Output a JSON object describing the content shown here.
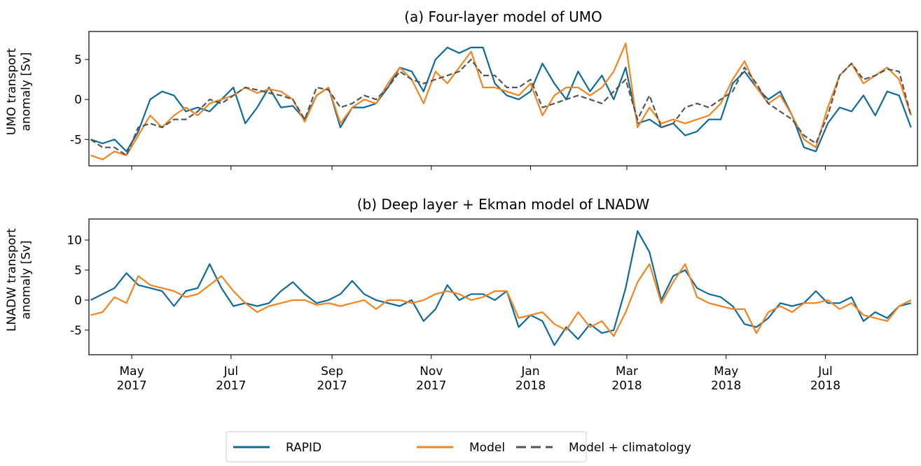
{
  "chart_data": [
    {
      "type": "line",
      "title": "(a) Four-layer model of UMO",
      "y_label": "UMO transport\nanomaly [Sv]",
      "xlim": [
        2017.257,
        2018.651
      ],
      "ylim": [
        -8.3,
        8.5
      ],
      "xticks": [
        2017.329,
        2017.496,
        2017.666,
        2017.833,
        2018.0,
        2018.162,
        2018.329,
        2018.496
      ],
      "yticks": [
        -5,
        0,
        5
      ],
      "x": [
        2017.26,
        2017.28,
        2017.3,
        2017.32,
        2017.34,
        2017.36,
        2017.38,
        2017.4,
        2017.42,
        2017.44,
        2017.46,
        2017.48,
        2017.5,
        2017.52,
        2017.54,
        2017.56,
        2017.58,
        2017.6,
        2017.62,
        2017.64,
        2017.66,
        2017.68,
        2017.7,
        2017.72,
        2017.74,
        2017.76,
        2017.78,
        2017.8,
        2017.82,
        2017.84,
        2017.86,
        2017.88,
        2017.9,
        2017.92,
        2017.94,
        2017.96,
        2017.98,
        2018.0,
        2018.02,
        2018.04,
        2018.06,
        2018.08,
        2018.1,
        2018.12,
        2018.14,
        2018.16,
        2018.18,
        2018.2,
        2018.22,
        2018.24,
        2018.26,
        2018.28,
        2018.3,
        2018.32,
        2018.34,
        2018.36,
        2018.38,
        2018.4,
        2018.42,
        2018.44,
        2018.46,
        2018.48,
        2018.5,
        2018.52,
        2018.54,
        2018.56,
        2018.58,
        2018.6,
        2018.62,
        2018.64
      ],
      "series": [
        {
          "name": "RAPID",
          "color": "#0f6a9c",
          "dash": false,
          "values": [
            -5,
            -5.5,
            -5,
            -6.5,
            -4,
            0,
            1,
            0.5,
            -1.5,
            -1,
            -1.5,
            0,
            1.5,
            -3,
            -1,
            1.5,
            -1,
            -0.8,
            -2.5,
            0.5,
            1.5,
            -3.5,
            -1,
            -1,
            -0.5,
            1.5,
            4,
            3.5,
            1,
            5,
            6.5,
            5.8,
            6.5,
            6.5,
            2,
            0.5,
            0,
            1,
            4.5,
            2,
            0,
            3.5,
            1,
            3,
            0,
            4,
            -3,
            -2.5,
            -3.5,
            -3,
            -4.5,
            -4,
            -2.5,
            -2.5,
            2,
            3.5,
            1.5,
            0,
            1,
            -2,
            -6,
            -6.5,
            -3,
            -1,
            -1.5,
            0.5,
            -2,
            1,
            0.5,
            -3.5
          ]
        },
        {
          "name": "Model",
          "color": "#f5841f",
          "dash": false,
          "values": [
            -7,
            -7.5,
            -6.5,
            -7,
            -4.5,
            -2,
            -3.5,
            -2,
            -1,
            -2,
            -0.5,
            0,
            0.5,
            1.5,
            0.8,
            1.3,
            1,
            0,
            -2.8,
            0.5,
            1.5,
            -3,
            -1,
            0,
            -0.5,
            2,
            4,
            2.5,
            -0.5,
            3.5,
            2,
            4,
            6,
            1.5,
            1.5,
            1,
            0.5,
            2,
            -2,
            0.5,
            1.5,
            1.5,
            0.5,
            1.5,
            3.5,
            7,
            -3.5,
            -1,
            -3,
            -2.5,
            -3,
            -2.5,
            -2,
            -0.5,
            2.5,
            4.8,
            1.5,
            -0.5,
            0.5,
            -2,
            -5,
            -6,
            -1,
            3,
            4.5,
            2,
            3,
            4,
            2.5,
            -2
          ]
        },
        {
          "name": "Model + climatology",
          "color": "#555555",
          "dash": true,
          "values": [
            -5,
            -6,
            -6,
            -7,
            -3.5,
            -3,
            -3.5,
            -2.5,
            -2.5,
            -1.5,
            0,
            -0.5,
            0.5,
            1.5,
            1.2,
            0.8,
            0.5,
            0,
            -2.5,
            1.5,
            1.2,
            -1,
            -0.5,
            0.5,
            0,
            1.5,
            3.5,
            2.5,
            2,
            2.5,
            3,
            3.5,
            5,
            3,
            3,
            1.5,
            1.5,
            2.5,
            -1,
            -0.5,
            0,
            0.5,
            0,
            -0.5,
            1,
            2.5,
            -2.5,
            0.5,
            -3.5,
            -3,
            -1,
            -0.5,
            -1,
            0,
            1,
            4,
            2,
            -0.5,
            -1.5,
            -2.5,
            -4.5,
            -5.5,
            -2,
            3,
            4.5,
            2.5,
            3,
            3.8,
            3.5,
            -2
          ]
        }
      ]
    },
    {
      "type": "line",
      "title": "(b) Deep layer + Ekman model of LNADW",
      "y_label": "LNADW transport\nanomaly [Sv]",
      "xlim": [
        2017.257,
        2018.651
      ],
      "ylim": [
        -9.1,
        13.5
      ],
      "xticks": [
        {
          "value": 2017.329,
          "label": "May\n2017"
        },
        {
          "value": 2017.496,
          "label": "Jul\n2017"
        },
        {
          "value": 2017.666,
          "label": "Sep\n2017"
        },
        {
          "value": 2017.833,
          "label": "Nov\n2017"
        },
        {
          "value": 2018.0,
          "label": "Jan\n2018"
        },
        {
          "value": 2018.162,
          "label": "Mar\n2018"
        },
        {
          "value": 2018.329,
          "label": "May\n2018"
        },
        {
          "value": 2018.496,
          "label": "Jul\n2018"
        }
      ],
      "yticks": [
        -5,
        0,
        5,
        10
      ],
      "x": [
        2017.26,
        2017.28,
        2017.3,
        2017.32,
        2017.34,
        2017.36,
        2017.38,
        2017.4,
        2017.42,
        2017.44,
        2017.46,
        2017.48,
        2017.5,
        2017.52,
        2017.54,
        2017.56,
        2017.58,
        2017.6,
        2017.62,
        2017.64,
        2017.66,
        2017.68,
        2017.7,
        2017.72,
        2017.74,
        2017.76,
        2017.78,
        2017.8,
        2017.82,
        2017.84,
        2017.86,
        2017.88,
        2017.9,
        2017.92,
        2017.94,
        2017.96,
        2017.98,
        2018.0,
        2018.02,
        2018.04,
        2018.06,
        2018.08,
        2018.1,
        2018.12,
        2018.14,
        2018.16,
        2018.18,
        2018.2,
        2018.22,
        2018.24,
        2018.26,
        2018.28,
        2018.3,
        2018.32,
        2018.34,
        2018.36,
        2018.38,
        2018.4,
        2018.42,
        2018.44,
        2018.46,
        2018.48,
        2018.5,
        2018.52,
        2018.54,
        2018.56,
        2018.58,
        2018.6,
        2018.62,
        2018.64
      ],
      "series": [
        {
          "name": "RAPID",
          "color": "#0f6a9c",
          "dash": false,
          "values": [
            0,
            1,
            2,
            4.5,
            2.5,
            2,
            1.5,
            -1,
            1.5,
            2,
            6,
            2,
            -1,
            -0.5,
            -1,
            -0.5,
            1.5,
            3,
            1,
            -0.5,
            0,
            1,
            3.2,
            1,
            0,
            -0.5,
            -1,
            0,
            -3.5,
            -1.5,
            2.5,
            0,
            1,
            1,
            0,
            1.5,
            -4.5,
            -2.5,
            -3.5,
            -7.5,
            -4.5,
            -6.5,
            -4,
            -5.5,
            -5,
            2,
            11.5,
            8,
            0,
            4,
            5,
            2,
            1,
            0.5,
            -1,
            -4,
            -4.5,
            -3,
            -0.5,
            -1,
            -0.5,
            1.5,
            -0.5,
            -0.5,
            0.5,
            -3.5,
            -2,
            -3,
            -1,
            -0.5
          ]
        },
        {
          "name": "Model",
          "color": "#f5841f",
          "dash": false,
          "values": [
            -2.5,
            -2,
            0.5,
            -0.5,
            4,
            2.5,
            2,
            1.5,
            0.5,
            1,
            2.5,
            4,
            1.5,
            -0.5,
            -2,
            -1,
            -0.5,
            0,
            0,
            -0.8,
            -0.5,
            -1,
            -0.5,
            0,
            -1.5,
            0,
            0,
            -0.5,
            0,
            1,
            1.5,
            1,
            0,
            0.5,
            1.5,
            1.5,
            -3,
            -2.5,
            -2,
            -4,
            -5,
            -2,
            -4.5,
            -3.5,
            -6,
            -2,
            3,
            6,
            -0.5,
            3,
            6,
            0.5,
            -0.5,
            -1,
            -1.5,
            -1.5,
            -5.5,
            -2,
            -1,
            -2,
            -0.5,
            -0.5,
            0,
            -1.5,
            -0.5,
            -2.5,
            -3,
            -3.5,
            -1,
            0
          ]
        }
      ]
    }
  ]
}
